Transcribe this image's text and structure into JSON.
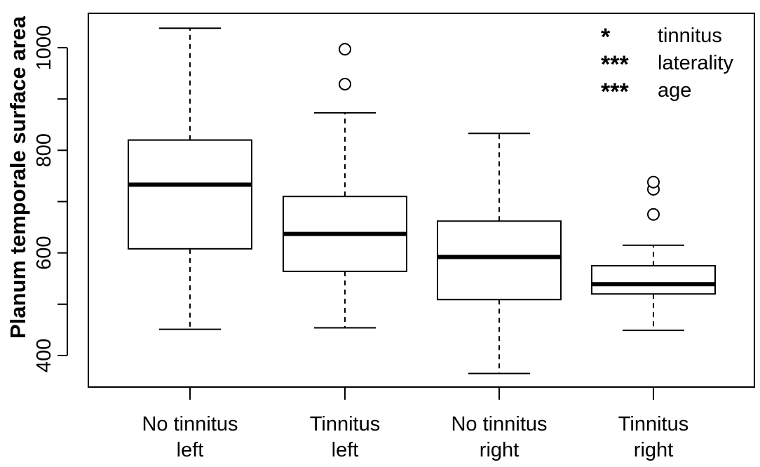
{
  "chart_data": {
    "type": "boxplot",
    "title": "",
    "xlabel": "",
    "ylabel": "Planum temporale surface area",
    "ylim": [
      365,
      1050
    ],
    "yticks": [
      400,
      600,
      800,
      1000
    ],
    "yticks_minor": [
      500,
      700,
      900
    ],
    "grid": false,
    "categories": [
      [
        "No tinnitus",
        "left"
      ],
      [
        "Tinnitus",
        "left"
      ],
      [
        "No tinnitus",
        "right"
      ],
      [
        "Tinnitus",
        "right"
      ]
    ],
    "boxes": [
      {
        "whisker_low": 451,
        "q1": 608,
        "median": 733,
        "q3": 820,
        "whisker_high": 1038,
        "outliers": []
      },
      {
        "whisker_low": 454,
        "q1": 564,
        "median": 637,
        "q3": 710,
        "whisker_high": 873,
        "outliers": [
          929,
          997
        ]
      },
      {
        "whisker_low": 365,
        "q1": 509,
        "median": 592,
        "q3": 662,
        "whisker_high": 833,
        "outliers": []
      },
      {
        "whisker_low": 449,
        "q1": 520,
        "median": 539,
        "q3": 575,
        "whisker_high": 615,
        "outliers": [
          675,
          724,
          738
        ]
      }
    ],
    "legend": {
      "placement": "top-right",
      "entries": [
        {
          "stars": "*",
          "label": "tinnitus"
        },
        {
          "stars": "***",
          "label": "laterality"
        },
        {
          "stars": "***",
          "label": "age"
        }
      ]
    }
  }
}
